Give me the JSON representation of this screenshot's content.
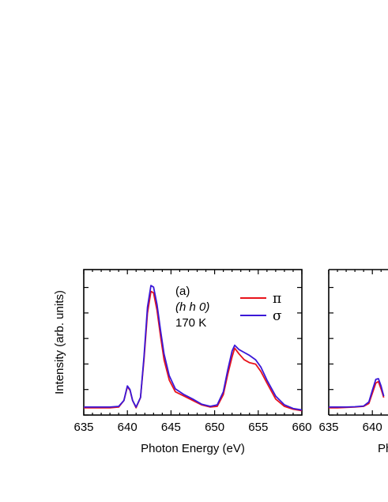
{
  "chart_data": [
    {
      "type": "line",
      "title": "",
      "xlabel": "Photon Energy (eV)",
      "ylabel": "Intensity (arb. units)",
      "xlim": [
        635,
        660
      ],
      "ylim": [
        0,
        1.0
      ],
      "xticks": [
        "635",
        "640",
        "645",
        "650",
        "655",
        "660"
      ],
      "y_tick_labels_shown": false,
      "grid": false,
      "annotations": [
        "(a)",
        "(h h 0)",
        "170 K"
      ],
      "legend_position": "top-right",
      "series": [
        {
          "name": "π",
          "color": "#e8131b",
          "x": [
            635,
            636,
            637,
            638,
            639,
            639.6,
            640,
            640.3,
            640.6,
            641,
            641.5,
            641.9,
            642.3,
            642.7,
            643,
            643.4,
            643.8,
            644.2,
            644.8,
            645.5,
            646.5,
            647.5,
            648.5,
            649.5,
            650.3,
            651,
            651.5,
            652,
            652.3,
            652.8,
            653.4,
            654,
            654.7,
            655.3,
            656,
            657,
            658,
            659,
            660
          ],
          "values": [
            0.05,
            0.05,
            0.05,
            0.05,
            0.055,
            0.1,
            0.195,
            0.17,
            0.1,
            0.05,
            0.12,
            0.38,
            0.7,
            0.85,
            0.84,
            0.72,
            0.54,
            0.38,
            0.24,
            0.16,
            0.13,
            0.1,
            0.07,
            0.055,
            0.06,
            0.14,
            0.28,
            0.4,
            0.46,
            0.42,
            0.38,
            0.36,
            0.35,
            0.3,
            0.22,
            0.11,
            0.06,
            0.04,
            0.03
          ]
        },
        {
          "name": "σ",
          "color": "#3b18d8",
          "x": [
            635,
            636,
            637,
            638,
            639,
            639.6,
            640,
            640.3,
            640.6,
            641,
            641.5,
            641.9,
            642.3,
            642.7,
            643,
            643.4,
            643.8,
            644.2,
            644.8,
            645.5,
            646.5,
            647.5,
            648.5,
            649.5,
            650.3,
            651,
            651.5,
            652,
            652.3,
            652.8,
            653.4,
            654,
            654.7,
            655.3,
            656,
            657,
            658,
            659,
            660
          ],
          "values": [
            0.055,
            0.055,
            0.055,
            0.055,
            0.06,
            0.1,
            0.2,
            0.175,
            0.1,
            0.055,
            0.12,
            0.4,
            0.74,
            0.89,
            0.88,
            0.76,
            0.58,
            0.42,
            0.27,
            0.18,
            0.14,
            0.11,
            0.075,
            0.06,
            0.07,
            0.16,
            0.31,
            0.44,
            0.48,
            0.45,
            0.43,
            0.41,
            0.38,
            0.33,
            0.24,
            0.13,
            0.07,
            0.045,
            0.035
          ]
        }
      ]
    },
    {
      "type": "line",
      "title": "",
      "xlabel": "Ph",
      "ylabel": "",
      "xlim": [
        635,
        660
      ],
      "ylim": [
        0,
        1.0
      ],
      "xticks": [
        "635",
        "640"
      ],
      "y_tick_labels_shown": false,
      "grid": false,
      "partially_visible": true,
      "series": [
        {
          "name": "",
          "color": "#e8131b",
          "x": [
            635,
            636,
            637,
            638,
            639,
            639.6,
            640,
            640.4,
            640.7,
            641,
            641.3
          ],
          "values": [
            0.05,
            0.05,
            0.052,
            0.055,
            0.06,
            0.08,
            0.15,
            0.22,
            0.23,
            0.18,
            0.12
          ]
        },
        {
          "name": "",
          "color": "#3b18d8",
          "x": [
            635,
            636,
            637,
            638,
            639,
            639.6,
            640,
            640.4,
            640.7,
            641,
            641.3
          ],
          "values": [
            0.055,
            0.055,
            0.055,
            0.057,
            0.062,
            0.09,
            0.17,
            0.245,
            0.25,
            0.2,
            0.13
          ]
        }
      ]
    }
  ]
}
